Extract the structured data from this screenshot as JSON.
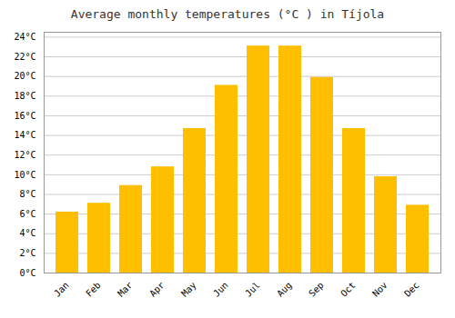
{
  "chart_data": {
    "type": "bar",
    "title": "Average monthly temperatures (°C ) in Tíjola",
    "categories": [
      "Jan",
      "Feb",
      "Mar",
      "Apr",
      "May",
      "Jun",
      "Jul",
      "Aug",
      "Sep",
      "Oct",
      "Nov",
      "Dec"
    ],
    "values": [
      6.2,
      7.1,
      8.9,
      10.8,
      14.7,
      19.1,
      23.1,
      23.1,
      19.9,
      14.7,
      9.8,
      6.9
    ],
    "color": "#FFBE00",
    "ylim": [
      0,
      24.5
    ],
    "yticks": [
      {
        "value": 0,
        "label": "0°C"
      },
      {
        "value": 2,
        "label": "2°C"
      },
      {
        "value": 4,
        "label": "4°C"
      },
      {
        "value": 6,
        "label": "6°C"
      },
      {
        "value": 8,
        "label": "8°C"
      },
      {
        "value": 10,
        "label": "10°C"
      },
      {
        "value": 12,
        "label": "12°C"
      },
      {
        "value": 14,
        "label": "14°C"
      },
      {
        "value": 16,
        "label": "16°C"
      },
      {
        "value": 18,
        "label": "18°C"
      },
      {
        "value": 20,
        "label": "20°C"
      },
      {
        "value": 22,
        "label": "22°C"
      },
      {
        "value": 24,
        "label": "24°C"
      }
    ],
    "grid": true
  }
}
